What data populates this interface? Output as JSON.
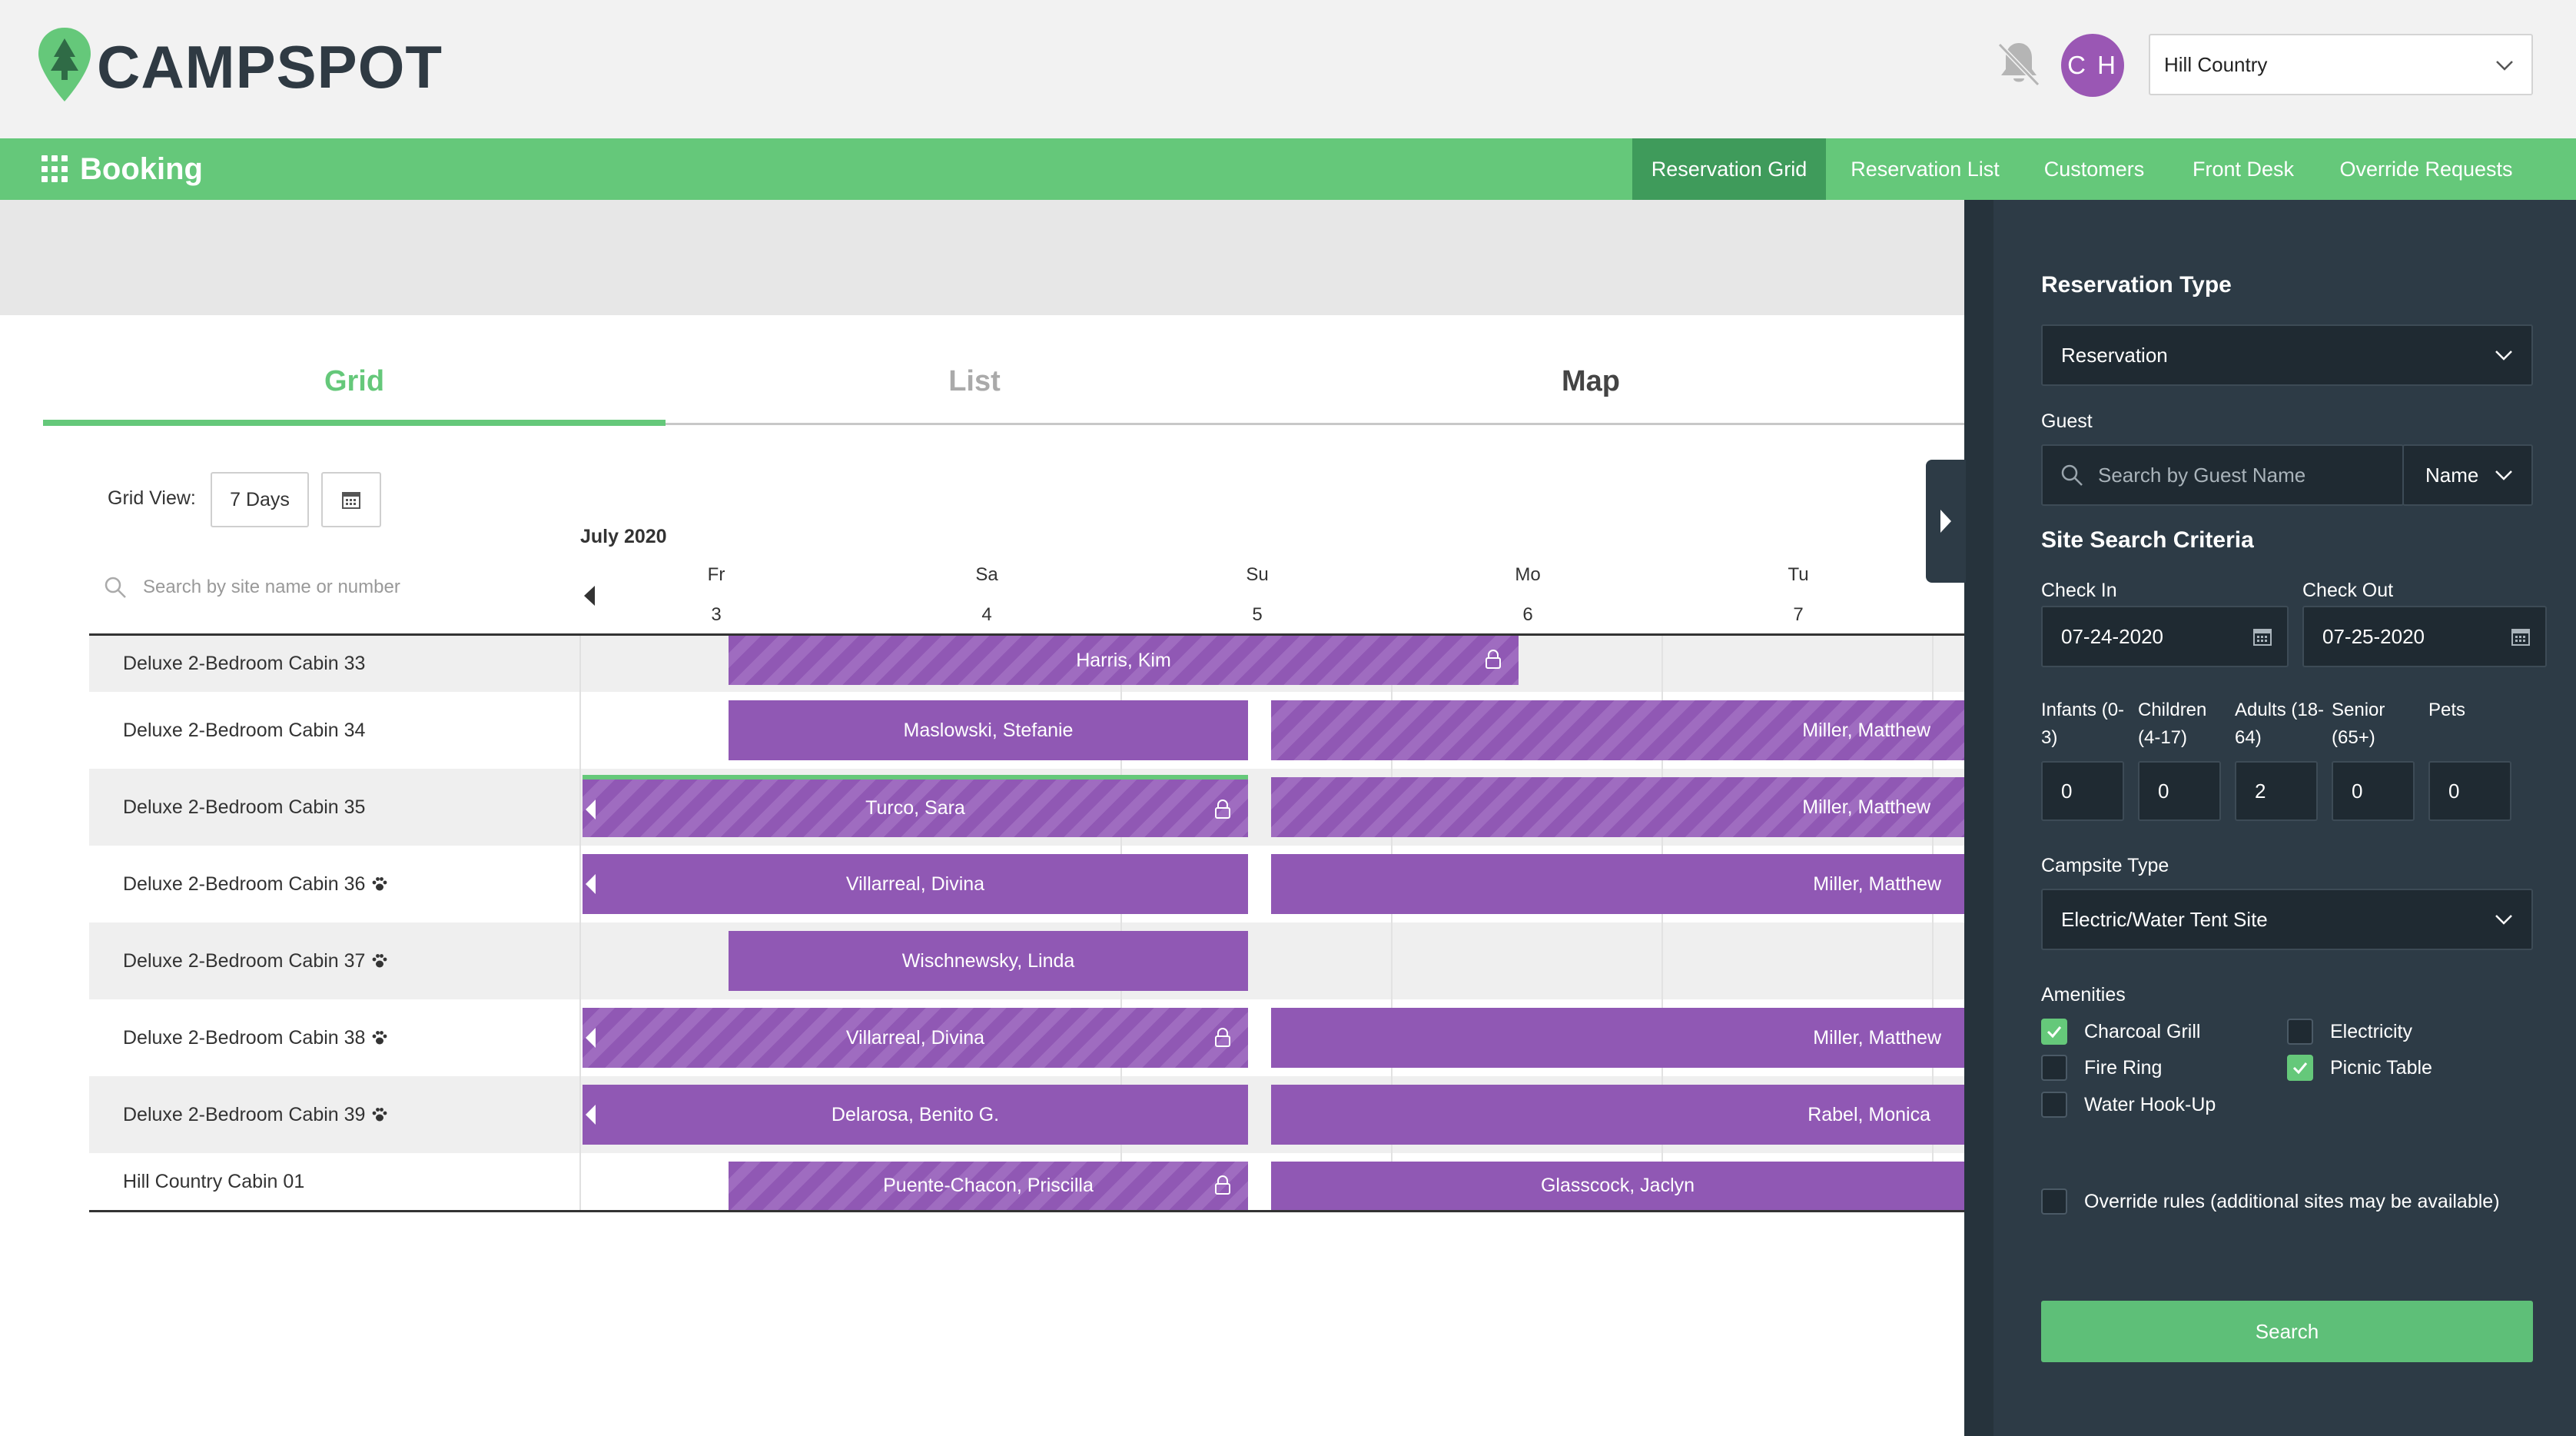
{
  "brand": {
    "name": "CAMPSPOT",
    "color": "#65c87a",
    "dark_text": "#2f3a43"
  },
  "header": {
    "user_initials": "C H",
    "campground_select": "Hill Country",
    "notification_icon": "bell-off-icon"
  },
  "nav": {
    "section_title": "Booking",
    "items": [
      "Reservation Grid",
      "Reservation List",
      "Customers",
      "Front Desk",
      "Override Requests"
    ],
    "active": "Reservation Grid"
  },
  "view_tabs": {
    "grid": "Grid",
    "list": "List",
    "map": "Map",
    "active": "Grid"
  },
  "grid": {
    "view_label": "Grid View:",
    "view_value": "7 Days",
    "month": "July 2020",
    "site_search_placeholder": "Search by site name or number",
    "days": [
      {
        "dow": "Fr",
        "num": "3"
      },
      {
        "dow": "Sa",
        "num": "4"
      },
      {
        "dow": "Su",
        "num": "5"
      },
      {
        "dow": "Mo",
        "num": "6"
      },
      {
        "dow": "Tu",
        "num": "7"
      }
    ],
    "rows": [
      {
        "site": "Deluxe 2-Bedroom Cabin 33",
        "pet": false,
        "reservations": [
          {
            "guest": "Harris, Kim",
            "striped": true,
            "locked": true
          }
        ]
      },
      {
        "site": "Deluxe 2-Bedroom Cabin 34",
        "pet": false,
        "reservations": [
          {
            "guest": "Maslowski, Stefanie"
          },
          {
            "guest": "Miller, Matthew",
            "striped": true
          }
        ]
      },
      {
        "site": "Deluxe 2-Bedroom Cabin 35",
        "pet": false,
        "reservations": [
          {
            "guest": "Turco, Sara",
            "striped": true,
            "locked": true
          },
          {
            "guest": "Miller, Matthew",
            "striped": true
          }
        ]
      },
      {
        "site": "Deluxe 2-Bedroom Cabin 36",
        "pet": true,
        "reservations": [
          {
            "guest": "Villarreal, Divina"
          },
          {
            "guest": "Miller, Matthew"
          }
        ]
      },
      {
        "site": "Deluxe 2-Bedroom Cabin 37",
        "pet": true,
        "reservations": [
          {
            "guest": "Wischnewsky, Linda"
          }
        ]
      },
      {
        "site": "Deluxe 2-Bedroom Cabin 38",
        "pet": true,
        "reservations": [
          {
            "guest": "Villarreal, Divina",
            "striped": true,
            "locked": true
          },
          {
            "guest": "Miller, Matthew"
          }
        ]
      },
      {
        "site": "Deluxe 2-Bedroom Cabin 39",
        "pet": true,
        "reservations": [
          {
            "guest": "Delarosa, Benito G."
          },
          {
            "guest": "Rabel, Monica"
          }
        ]
      },
      {
        "site": "Hill Country Cabin 01",
        "pet": false,
        "reservations": [
          {
            "guest": "Puente-Chacon, Priscilla",
            "striped": true,
            "locked": true
          },
          {
            "guest": "Glasscock, Jaclyn"
          }
        ]
      }
    ],
    "reservation_color": "#9058b4"
  },
  "panel": {
    "reservation_type_label": "Reservation Type",
    "reservation_type_value": "Reservation",
    "guest_label": "Guest",
    "guest_placeholder": "Search by Guest Name",
    "guest_mode": "Name",
    "site_search_title": "Site Search Criteria",
    "check_in_label": "Check In",
    "check_in_value": "07-24-2020",
    "check_out_label": "Check Out",
    "check_out_value": "07-25-2020",
    "occupants": [
      {
        "label_line1": "Infants (0-",
        "label_line2": "3)",
        "value": "0"
      },
      {
        "label_line1": "Children",
        "label_line2": "(4-17)",
        "value": "0"
      },
      {
        "label_line1": "Adults (18-",
        "label_line2": "64)",
        "value": "2"
      },
      {
        "label_line1": "Senior",
        "label_line2": "(65+)",
        "value": "0"
      },
      {
        "label_line1": "",
        "label_line2": "Pets",
        "value": "0"
      }
    ],
    "campsite_type_label": "Campsite Type",
    "campsite_type_value": "Electric/Water Tent Site",
    "amenities_label": "Amenities",
    "amenities": [
      {
        "label": "Charcoal Grill",
        "checked": true
      },
      {
        "label": "Electricity",
        "checked": false
      },
      {
        "label": "Fire Ring",
        "checked": false
      },
      {
        "label": "Picnic Table",
        "checked": true
      },
      {
        "label": "Water Hook-Up",
        "checked": false
      }
    ],
    "override_label": "Override rules (additional sites may be available)",
    "override_checked": false,
    "search_button": "Search"
  }
}
